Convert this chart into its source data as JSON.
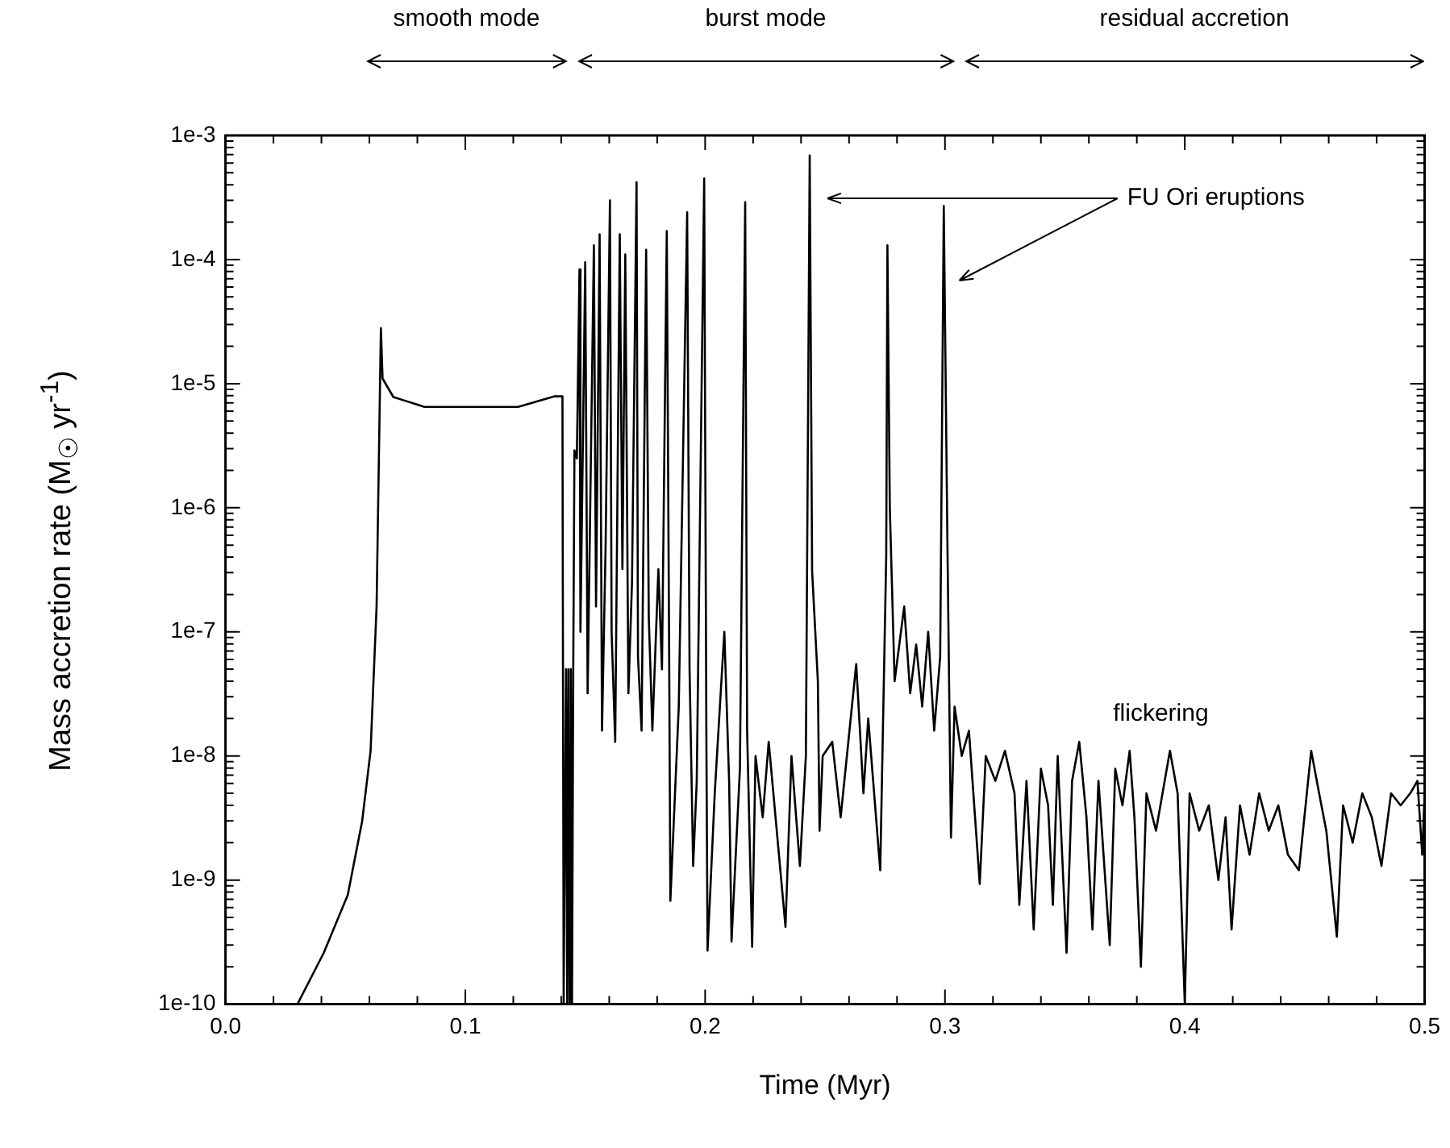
{
  "chart_data": {
    "type": "line",
    "xlabel": "Time (Myr)",
    "ylabel": "Mass accretion rate (M$_{☉}$ yr$^{-1}$)",
    "log": "y",
    "legend": false,
    "grid": false,
    "marker": "none",
    "line_style": "solid",
    "xlim": [
      0,
      0.5
    ],
    "ylim": [
      1e-10,
      0.001
    ],
    "xticks": [
      {
        "value": 0,
        "label": "0.0"
      },
      {
        "value": 0.02,
        "label": null
      },
      {
        "value": 0.04,
        "label": null
      },
      {
        "value": 0.06,
        "label": null
      },
      {
        "value": 0.08,
        "label": null
      },
      0.1,
      {
        "value": 0.12,
        "label": null
      },
      {
        "value": 0.14,
        "label": null
      },
      {
        "value": 0.16,
        "label": null
      },
      {
        "value": 0.18,
        "label": null
      },
      0.2,
      {
        "value": 0.22,
        "label": null
      },
      {
        "value": 0.24,
        "label": null
      },
      {
        "value": 0.26,
        "label": null
      },
      {
        "value": 0.28,
        "label": null
      },
      0.3,
      {
        "value": 0.32,
        "label": null
      },
      {
        "value": 0.34,
        "label": null
      },
      {
        "value": 0.36,
        "label": null
      },
      {
        "value": 0.38,
        "label": null
      },
      0.4,
      {
        "value": 0.42,
        "label": null
      },
      {
        "value": 0.44,
        "label": null
      },
      {
        "value": 0.46,
        "label": null
      },
      {
        "value": 0.48,
        "label": null
      },
      0.5
    ],
    "yticks": [
      {
        "value": 1e-10,
        "label": "1e-10"
      },
      {
        "value": 2e-10,
        "label": null
      },
      {
        "value": 3e-10,
        "label": null
      },
      {
        "value": 4e-10,
        "label": null
      },
      {
        "value": 5e-10,
        "label": null
      },
      {
        "value": 6e-10,
        "label": null
      },
      {
        "value": 7e-10,
        "label": null
      },
      {
        "value": 8e-10,
        "label": null
      },
      {
        "value": 9e-10,
        "label": null
      },
      {
        "value": 1e-09,
        "label": "1e-9"
      },
      {
        "value": 2e-09,
        "label": null
      },
      {
        "value": 3e-09,
        "label": null
      },
      {
        "value": 4e-09,
        "label": null
      },
      {
        "value": 5e-09,
        "label": null
      },
      {
        "value": 6e-09,
        "label": null
      },
      {
        "value": 7e-09,
        "label": null
      },
      {
        "value": 8e-09,
        "label": null
      },
      {
        "value": 9e-09,
        "label": null
      },
      {
        "value": 1e-08,
        "label": "1e-8"
      },
      {
        "value": 2e-08,
        "label": null
      },
      {
        "value": 3e-08,
        "label": null
      },
      {
        "value": 4e-08,
        "label": null
      },
      {
        "value": 5e-08,
        "label": null
      },
      {
        "value": 6e-08,
        "label": null
      },
      {
        "value": 7e-08,
        "label": null
      },
      {
        "value": 8e-08,
        "label": null
      },
      {
        "value": 9e-08,
        "label": null
      },
      {
        "value": 1e-07,
        "label": "1e-7"
      },
      {
        "value": 2e-07,
        "label": null
      },
      {
        "value": 3e-07,
        "label": null
      },
      {
        "value": 4e-07,
        "label": null
      },
      {
        "value": 5e-07,
        "label": null
      },
      {
        "value": 6e-07,
        "label": null
      },
      {
        "value": 7e-07,
        "label": null
      },
      {
        "value": 8e-07,
        "label": null
      },
      {
        "value": 9e-07,
        "label": null
      },
      {
        "value": 1e-06,
        "label": "1e-6"
      },
      {
        "value": 2e-06,
        "label": null
      },
      {
        "value": 3e-06,
        "label": null
      },
      {
        "value": 4e-06,
        "label": null
      },
      {
        "value": 5e-06,
        "label": null
      },
      {
        "value": 6e-06,
        "label": null
      },
      {
        "value": 7e-06,
        "label": null
      },
      {
        "value": 8e-06,
        "label": null
      },
      {
        "value": 9e-06,
        "label": null
      },
      {
        "value": 1e-05,
        "label": "1e-5"
      },
      {
        "value": 2e-05,
        "label": null
      },
      {
        "value": 3e-05,
        "label": null
      },
      {
        "value": 4e-05,
        "label": null
      },
      {
        "value": 5e-05,
        "label": null
      },
      {
        "value": 6e-05,
        "label": null
      },
      {
        "value": 7e-05,
        "label": null
      },
      {
        "value": 8e-05,
        "label": null
      },
      {
        "value": 9e-05,
        "label": null
      },
      {
        "value": 0.0001,
        "label": "1e-4"
      },
      {
        "value": 0.0002,
        "label": null
      },
      {
        "value": 0.0003,
        "label": null
      },
      {
        "value": 0.0004,
        "label": null
      },
      {
        "value": 0.0005,
        "label": null
      },
      {
        "value": 0.0006,
        "label": null
      },
      {
        "value": 0.0007,
        "label": null
      },
      {
        "value": 0.0008,
        "label": null
      },
      {
        "value": 0.0009,
        "label": null
      },
      {
        "value": 0.001,
        "label": "1e-3"
      }
    ],
    "annotations": [
      "smooth mode",
      "burst mode",
      "residual accretion",
      "FU Ori eruptions",
      "flickering"
    ],
    "series": [
      {
        "color": "#000000",
        "x": [
          0.03,
          0.041,
          0.051,
          0.057,
          0.0605,
          0.063,
          0.0645,
          0.0648,
          0.0655,
          0.07,
          0.083,
          0.122,
          0.137,
          0.1405,
          0.141,
          0.142,
          0.1425,
          0.143,
          0.1435,
          0.144,
          0.1445,
          0.145,
          0.1455,
          0.1465,
          0.1476,
          0.148,
          0.15,
          0.151,
          0.1536,
          0.1545,
          0.156,
          0.157,
          0.1585,
          0.1603,
          0.161,
          0.1625,
          0.1644,
          0.1655,
          0.1667,
          0.168,
          0.1695,
          0.1714,
          0.172,
          0.1735,
          0.1754,
          0.1765,
          0.178,
          0.1805,
          0.182,
          0.184,
          0.185,
          0.1855,
          0.189,
          0.1925,
          0.1935,
          0.195,
          0.1965,
          0.1996,
          0.2005,
          0.201,
          0.204,
          0.208,
          0.21,
          0.211,
          0.2145,
          0.2167,
          0.2175,
          0.2196,
          0.221,
          0.224,
          0.2265,
          0.2335,
          0.236,
          0.2395,
          0.242,
          0.2436,
          0.2446,
          0.247,
          0.2477,
          0.249,
          0.253,
          0.2565,
          0.263,
          0.266,
          0.268,
          0.273,
          0.2755,
          0.276,
          0.277,
          0.279,
          0.283,
          0.2855,
          0.288,
          0.2905,
          0.293,
          0.2955,
          0.298,
          0.2995,
          0.301,
          0.3025,
          0.304,
          0.307,
          0.31,
          0.3145,
          0.317,
          0.321,
          0.325,
          0.329,
          0.331,
          0.334,
          0.337,
          0.34,
          0.343,
          0.345,
          0.347,
          0.3507,
          0.353,
          0.356,
          0.359,
          0.3615,
          0.364,
          0.3687,
          0.371,
          0.374,
          0.377,
          0.379,
          0.3817,
          0.384,
          0.388,
          0.3938,
          0.397,
          0.4,
          0.402,
          0.406,
          0.41,
          0.414,
          0.417,
          0.4195,
          0.423,
          0.427,
          0.431,
          0.435,
          0.439,
          0.443,
          0.4476,
          0.4527,
          0.456,
          0.459,
          0.4634,
          0.466,
          0.47,
          0.474,
          0.478,
          0.482,
          0.486,
          0.49,
          0.494,
          0.497,
          0.499,
          0.5
        ],
        "values": [
          1e-10,
          2.6e-10,
          7.6e-10,
          3e-09,
          1.1e-08,
          1.6e-07,
          1.2e-05,
          2.8e-05,
          1.1e-05,
          7.8e-06,
          6.5e-06,
          6.5e-06,
          7.9e-06,
          7.9e-06,
          1e-10,
          5e-08,
          1e-10,
          5e-08,
          1e-10,
          5e-08,
          1e-10,
          5e-08,
          2.9e-06,
          2.5e-06,
          8.3e-05,
          1e-07,
          9.5e-05,
          3.2e-08,
          0.00013,
          1.6e-07,
          0.00016,
          1.6e-08,
          5e-07,
          0.0003,
          1e-07,
          1.3e-08,
          0.00016,
          3.2e-07,
          0.00011,
          3.2e-08,
          2.5e-07,
          0.00042,
          6.3e-08,
          1.6e-08,
          0.00012,
          1.3e-07,
          1.6e-08,
          3.2e-07,
          5e-08,
          0.00017,
          6.3e-08,
          6.8e-10,
          2.5e-08,
          0.00024,
          5e-08,
          1.3e-09,
          6.3e-09,
          0.00045,
          1.6e-08,
          2.7e-10,
          5e-09,
          1e-07,
          6.3e-09,
          3.2e-10,
          7.9e-09,
          0.00029,
          1.6e-08,
          2.9e-10,
          1e-08,
          3.2e-09,
          1.3e-08,
          4.2e-10,
          1e-08,
          1.3e-09,
          1e-08,
          0.00069,
          3.1e-07,
          4e-08,
          2.5e-09,
          1e-08,
          1.3e-08,
          3.2e-09,
          5.5e-08,
          5e-09,
          2e-08,
          1.2e-09,
          4e-07,
          0.00013,
          1e-06,
          4e-08,
          1.6e-07,
          3.2e-08,
          7.9e-08,
          2.5e-08,
          1e-07,
          1.6e-08,
          6.3e-08,
          0.00027,
          5.6e-07,
          2.2e-09,
          2.5e-08,
          1e-08,
          1.6e-08,
          9.3e-10,
          1e-08,
          6.3e-09,
          1.1e-08,
          5e-09,
          6.3e-10,
          6.3e-09,
          4e-10,
          7.9e-09,
          4e-09,
          6.3e-10,
          1e-08,
          2.6e-10,
          6.3e-09,
          1.3e-08,
          3.2e-09,
          4e-10,
          6.3e-09,
          3e-10,
          7.9e-09,
          4e-09,
          1.1e-08,
          3.2e-09,
          2e-10,
          5e-09,
          2.5e-09,
          1.1e-08,
          5e-09,
          1e-10,
          5e-09,
          2.5e-09,
          4e-09,
          1e-09,
          3.2e-09,
          4e-10,
          4e-09,
          1.6e-09,
          5e-09,
          2.5e-09,
          4e-09,
          1.6e-09,
          1.2e-09,
          1.1e-08,
          5e-09,
          2.5e-09,
          3.5e-10,
          4e-09,
          2e-09,
          5e-09,
          3.2e-09,
          1.3e-09,
          5e-09,
          4e-09,
          5e-09,
          6.3e-09,
          1.6e-09,
          5e-09
        ]
      }
    ]
  }
}
